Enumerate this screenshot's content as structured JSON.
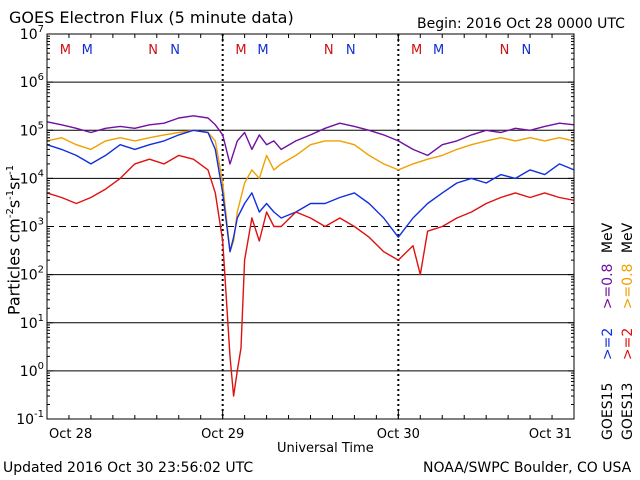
{
  "header": {
    "title": "GOES Electron Flux (5 minute data)",
    "begin": "Begin: 2016 Oct 28 0000 UTC"
  },
  "footer": {
    "updated": "Updated 2016 Oct 30 23:56:02 UTC",
    "source": "NOAA/SWPC Boulder, CO USA"
  },
  "colors": {
    "goes15_ge2": "#1030e0",
    "goes13_ge2": "#e01010",
    "goes15_ge08": "#7010a0",
    "goes13_ge08": "#f0a000",
    "marker_M": "#d01010",
    "marker_N": "#1030d0"
  },
  "legend": {
    "goes15": "GOES15",
    "goes13": "GOES13",
    "ge2": ">=2",
    "ge08": ">=0.8",
    "mev": "MeV"
  },
  "chart_data": {
    "type": "line",
    "title": "GOES Electron Flux (5 minute data)",
    "xlabel": "Universal Time",
    "ylabel": "Particles cm-2 s-1 sr-1",
    "yscale": "log",
    "ylim": [
      0.1,
      10000000
    ],
    "xlim": [
      0,
      72
    ],
    "x_unit": "hours since 2016 Oct 28 0000 UTC",
    "xticks": [
      {
        "label": "Oct 28",
        "x": 0
      },
      {
        "label": "Oct 29",
        "x": 24
      },
      {
        "label": "Oct 30",
        "x": 48
      },
      {
        "label": "Oct 31",
        "x": 72
      }
    ],
    "ytick_exponents": [
      -1,
      0,
      1,
      2,
      3,
      4,
      5,
      6,
      7
    ],
    "threshold": 1000,
    "markers": [
      {
        "label": "M",
        "x": 2.5,
        "color": "#d01010"
      },
      {
        "label": "M",
        "x": 5.5,
        "color": "#1030d0"
      },
      {
        "label": "N",
        "x": 14.5,
        "color": "#d01010"
      },
      {
        "label": "N",
        "x": 17.5,
        "color": "#1030d0"
      },
      {
        "label": "M",
        "x": 26.5,
        "color": "#d01010"
      },
      {
        "label": "M",
        "x": 29.5,
        "color": "#1030d0"
      },
      {
        "label": "N",
        "x": 38.5,
        "color": "#d01010"
      },
      {
        "label": "N",
        "x": 41.5,
        "color": "#1030d0"
      },
      {
        "label": "M",
        "x": 50.5,
        "color": "#d01010"
      },
      {
        "label": "M",
        "x": 53.5,
        "color": "#1030d0"
      },
      {
        "label": "N",
        "x": 62.5,
        "color": "#d01010"
      },
      {
        "label": "N",
        "x": 65.5,
        "color": "#1030d0"
      }
    ],
    "series": [
      {
        "name": "GOES15 >=0.8 MeV",
        "color": "#7010a0",
        "points": [
          [
            0,
            150000
          ],
          [
            2,
            130000
          ],
          [
            4,
            110000
          ],
          [
            6,
            90000
          ],
          [
            8,
            110000
          ],
          [
            10,
            120000
          ],
          [
            12,
            110000
          ],
          [
            14,
            130000
          ],
          [
            16,
            140000
          ],
          [
            18,
            180000
          ],
          [
            20,
            200000
          ],
          [
            22,
            180000
          ],
          [
            23,
            130000
          ],
          [
            24,
            80000
          ],
          [
            25,
            20000
          ],
          [
            26,
            60000
          ],
          [
            27,
            90000
          ],
          [
            28,
            40000
          ],
          [
            29,
            80000
          ],
          [
            30,
            50000
          ],
          [
            31,
            60000
          ],
          [
            32,
            40000
          ],
          [
            34,
            60000
          ],
          [
            36,
            80000
          ],
          [
            38,
            110000
          ],
          [
            40,
            140000
          ],
          [
            42,
            120000
          ],
          [
            44,
            100000
          ],
          [
            46,
            80000
          ],
          [
            48,
            60000
          ],
          [
            50,
            40000
          ],
          [
            52,
            30000
          ],
          [
            54,
            50000
          ],
          [
            56,
            60000
          ],
          [
            58,
            80000
          ],
          [
            60,
            100000
          ],
          [
            62,
            90000
          ],
          [
            64,
            110000
          ],
          [
            66,
            100000
          ],
          [
            68,
            120000
          ],
          [
            70,
            140000
          ],
          [
            72,
            130000
          ]
        ]
      },
      {
        "name": "GOES13 >=0.8 MeV",
        "color": "#f0a000",
        "points": [
          [
            0,
            60000
          ],
          [
            2,
            70000
          ],
          [
            4,
            50000
          ],
          [
            6,
            40000
          ],
          [
            8,
            60000
          ],
          [
            10,
            70000
          ],
          [
            12,
            60000
          ],
          [
            14,
            70000
          ],
          [
            16,
            80000
          ],
          [
            18,
            90000
          ],
          [
            20,
            100000
          ],
          [
            22,
            90000
          ],
          [
            23,
            60000
          ],
          [
            24,
            8000
          ],
          [
            25,
            300
          ],
          [
            25.5,
            500
          ],
          [
            26,
            2000
          ],
          [
            27,
            8000
          ],
          [
            28,
            15000
          ],
          [
            29,
            10000
          ],
          [
            30,
            30000
          ],
          [
            31,
            15000
          ],
          [
            32,
            20000
          ],
          [
            34,
            30000
          ],
          [
            36,
            50000
          ],
          [
            38,
            60000
          ],
          [
            40,
            60000
          ],
          [
            42,
            50000
          ],
          [
            44,
            30000
          ],
          [
            46,
            20000
          ],
          [
            48,
            15000
          ],
          [
            50,
            20000
          ],
          [
            52,
            25000
          ],
          [
            54,
            30000
          ],
          [
            56,
            40000
          ],
          [
            58,
            50000
          ],
          [
            60,
            60000
          ],
          [
            62,
            70000
          ],
          [
            64,
            60000
          ],
          [
            66,
            70000
          ],
          [
            68,
            60000
          ],
          [
            70,
            70000
          ],
          [
            72,
            60000
          ]
        ]
      },
      {
        "name": "GOES15 >=2 MeV",
        "color": "#1030e0",
        "points": [
          [
            0,
            50000
          ],
          [
            2,
            40000
          ],
          [
            4,
            30000
          ],
          [
            6,
            20000
          ],
          [
            8,
            30000
          ],
          [
            10,
            50000
          ],
          [
            12,
            40000
          ],
          [
            14,
            50000
          ],
          [
            16,
            60000
          ],
          [
            18,
            80000
          ],
          [
            20,
            100000
          ],
          [
            22,
            90000
          ],
          [
            23,
            40000
          ],
          [
            24,
            5000
          ],
          [
            25,
            300
          ],
          [
            25.5,
            600
          ],
          [
            26,
            1500
          ],
          [
            27,
            3000
          ],
          [
            28,
            5000
          ],
          [
            29,
            2000
          ],
          [
            30,
            3000
          ],
          [
            31,
            2000
          ],
          [
            32,
            1500
          ],
          [
            34,
            2000
          ],
          [
            36,
            3000
          ],
          [
            38,
            3000
          ],
          [
            40,
            4000
          ],
          [
            42,
            5000
          ],
          [
            44,
            3000
          ],
          [
            46,
            1500
          ],
          [
            48,
            600
          ],
          [
            50,
            1500
          ],
          [
            52,
            3000
          ],
          [
            54,
            5000
          ],
          [
            56,
            8000
          ],
          [
            58,
            10000
          ],
          [
            60,
            8000
          ],
          [
            62,
            12000
          ],
          [
            64,
            10000
          ],
          [
            66,
            15000
          ],
          [
            68,
            12000
          ],
          [
            70,
            20000
          ],
          [
            72,
            15000
          ]
        ]
      },
      {
        "name": "GOES13 >=2 MeV",
        "color": "#e01010",
        "points": [
          [
            0,
            5000
          ],
          [
            2,
            4000
          ],
          [
            4,
            3000
          ],
          [
            6,
            4000
          ],
          [
            8,
            6000
          ],
          [
            10,
            10000
          ],
          [
            12,
            20000
          ],
          [
            14,
            25000
          ],
          [
            16,
            20000
          ],
          [
            18,
            30000
          ],
          [
            20,
            25000
          ],
          [
            22,
            15000
          ],
          [
            23,
            5000
          ],
          [
            24,
            500
          ],
          [
            25,
            2
          ],
          [
            25.5,
            0.3
          ],
          [
            26,
            1
          ],
          [
            26.5,
            3
          ],
          [
            27,
            200
          ],
          [
            28,
            1500
          ],
          [
            29,
            500
          ],
          [
            30,
            2000
          ],
          [
            31,
            1000
          ],
          [
            32,
            1000
          ],
          [
            34,
            2000
          ],
          [
            36,
            1500
          ],
          [
            38,
            1000
          ],
          [
            40,
            1500
          ],
          [
            42,
            1000
          ],
          [
            44,
            600
          ],
          [
            46,
            300
          ],
          [
            48,
            200
          ],
          [
            50,
            400
          ],
          [
            51,
            100
          ],
          [
            52,
            800
          ],
          [
            54,
            1000
          ],
          [
            56,
            1500
          ],
          [
            58,
            2000
          ],
          [
            60,
            3000
          ],
          [
            62,
            4000
          ],
          [
            64,
            5000
          ],
          [
            66,
            4000
          ],
          [
            68,
            5000
          ],
          [
            70,
            4000
          ],
          [
            72,
            3500
          ]
        ]
      }
    ]
  }
}
